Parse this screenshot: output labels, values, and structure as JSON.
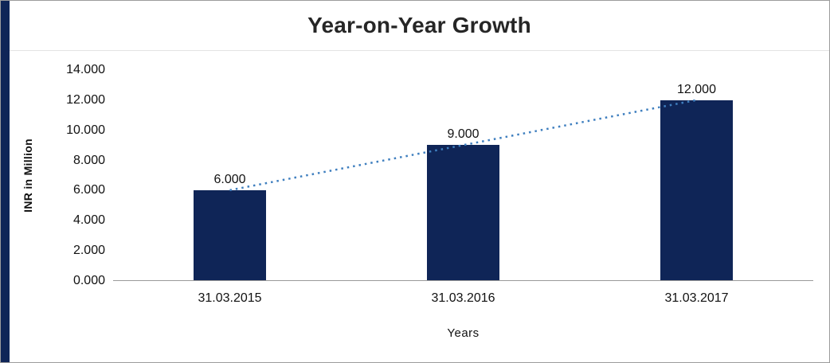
{
  "frame": {
    "border_color": "#9c9c9c",
    "accent_stripe_color": "#0f2557",
    "background": "#ffffff"
  },
  "chart_data": {
    "type": "bar",
    "title": "Year-on-Year Growth",
    "categories": [
      "31.03.2015",
      "31.03.2016",
      "31.03.2017"
    ],
    "values": [
      6000,
      9000,
      12000
    ],
    "value_labels": [
      "6.000",
      "9.000",
      "12.000"
    ],
    "xlabel": "Years",
    "ylabel": "INR in Million",
    "ylim": [
      0,
      14000
    ],
    "ytick_values": [
      0,
      2000,
      4000,
      6000,
      8000,
      10000,
      12000,
      14000
    ],
    "ytick_labels": [
      "0.000",
      "2.000",
      "4.000",
      "6.000",
      "8.000",
      "10.000",
      "12.000",
      "14.000"
    ],
    "bar_color": "#0f2557",
    "trendline": {
      "type": "linear",
      "style": "dotted",
      "color": "#3f7fbf"
    },
    "grid": false,
    "legend": "none"
  }
}
